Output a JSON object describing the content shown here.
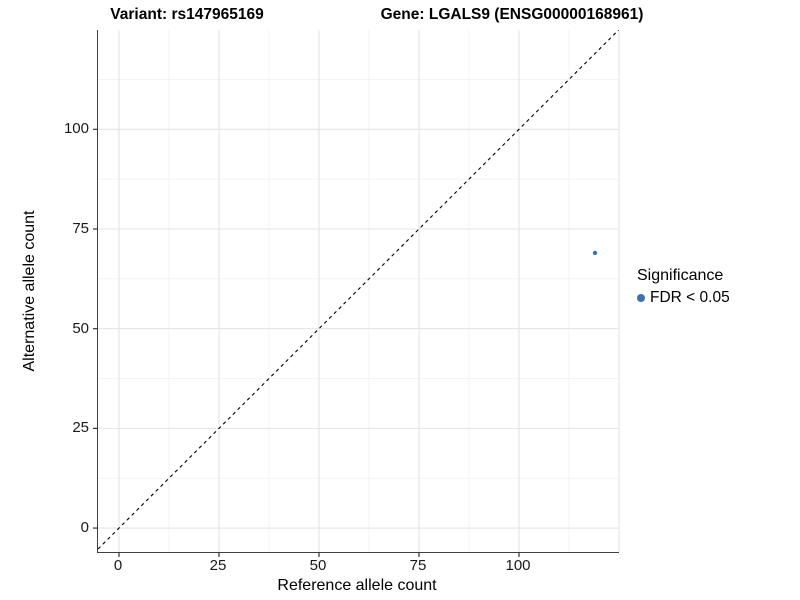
{
  "figure": {
    "background": "#ffffff"
  },
  "chart_data": {
    "type": "scatter",
    "titles": {
      "left": "Variant: rs147965169",
      "right": "Gene: LGALS9 (ENSG00000168961)"
    },
    "xlabel": "Reference allele count",
    "ylabel": "Alternative allele count",
    "xlim": [
      -5.25,
      125.0
    ],
    "ylim": [
      -6.0,
      124.9
    ],
    "x_ticks": [
      0,
      25,
      50,
      75,
      100
    ],
    "y_ticks": [
      0,
      25,
      50,
      75,
      100
    ],
    "major_tick_step": 25,
    "minor_tick_step": 12.5,
    "grid": "major+minor",
    "identity_line": {
      "style": "dashed",
      "equation": "y = x",
      "slope": 1,
      "intercept": 0
    },
    "points": [
      {
        "x": 119,
        "y": 69,
        "series": "FDR < 0.05"
      }
    ],
    "legend": {
      "title": "Significance",
      "position": "right",
      "items": [
        {
          "label": "FDR < 0.05",
          "marker": "circle",
          "color": "#3f72ab"
        }
      ]
    },
    "colors": {
      "point": "#3f72ab",
      "grid_major": "#e4e4e4",
      "grid_minor": "#f0f0f0",
      "axis_line": "#404040",
      "tick_mark": "#333333",
      "identity_line": "#000000",
      "text": "#000000"
    }
  }
}
